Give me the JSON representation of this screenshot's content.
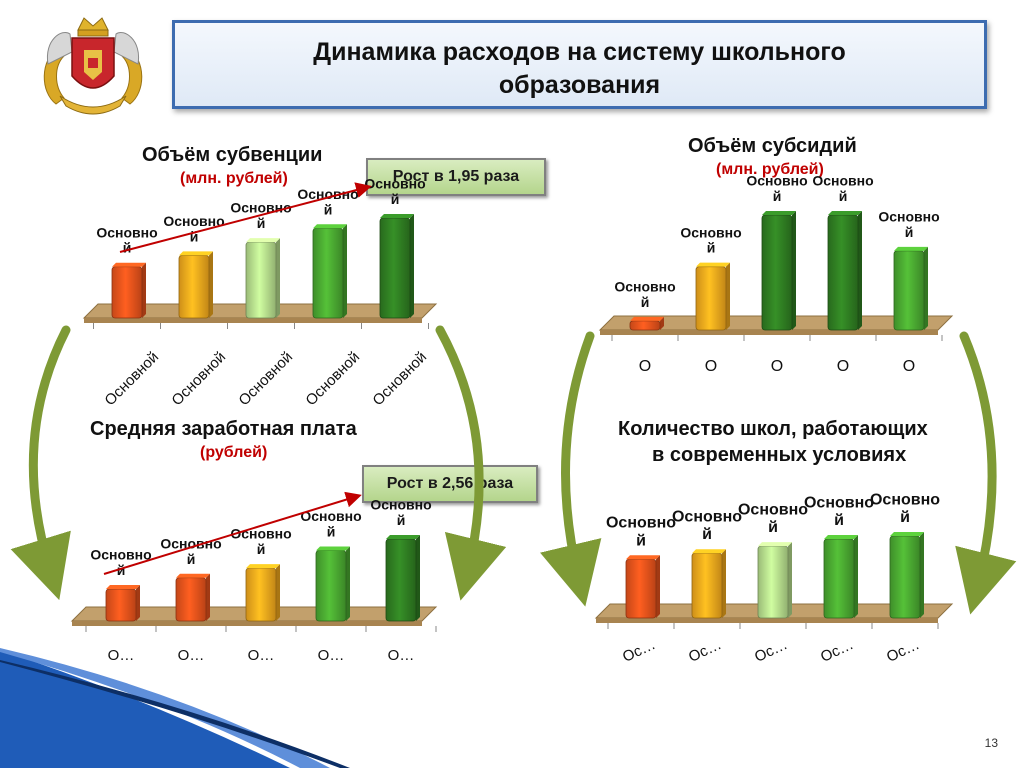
{
  "page": {
    "title_line1": "Динамика расходов на систему школьного",
    "title_line2": "образования",
    "page_number": "13"
  },
  "colors": {
    "orange": "#e8531c",
    "yellow": "#f2a81d",
    "light_green": "#b5dc8c",
    "green": "#4aa831",
    "dark_green": "#2f7d22",
    "arrow_red": "#c00000",
    "curve_green": "#7e9a35",
    "floor": "#c2a06c"
  },
  "emblem": {
    "icon": "coat-of-arms-icon"
  },
  "chart_data": [
    {
      "type": "bar",
      "title": "Объём субвенции",
      "subtitle": "(млн. рублей)",
      "growth_label": "Рост в 1,95 раза",
      "categories": [
        "Основной",
        "Основной",
        "Основной",
        "Основной",
        "Основной"
      ],
      "values": [
        1.0,
        1.22,
        1.48,
        1.75,
        1.95
      ],
      "data_labels": [
        "Основной",
        "Основной",
        "Основной",
        "Основной",
        "Основной"
      ],
      "bar_colors": [
        "#e8531c",
        "#f2a81d",
        "#b5dc8c",
        "#4aa831",
        "#2f7d22"
      ],
      "ylim": [
        0,
        2.0
      ]
    },
    {
      "type": "bar",
      "title": "Объём субсидий",
      "subtitle": "(млн. рублей)",
      "categories": [
        "О",
        "О",
        "О",
        "О",
        "О"
      ],
      "values": [
        0.11,
        0.76,
        1.38,
        1.38,
        0.95
      ],
      "data_labels": [
        "Основной",
        "Основной",
        "Основной",
        "Основной",
        "Основной"
      ],
      "bar_colors": [
        "#e8531c",
        "#f2a81d",
        "#2f7d22",
        "#2f7d22",
        "#4aa831"
      ],
      "ylim": [
        0,
        1.6
      ]
    },
    {
      "type": "bar",
      "title": "Средняя заработная плата",
      "subtitle": "(рублей)",
      "growth_label": "Рост в 2,56 раза",
      "categories": [
        "О…",
        "О…",
        "О…",
        "О…",
        "О…"
      ],
      "values": [
        1.0,
        1.35,
        1.65,
        2.2,
        2.56
      ],
      "data_labels": [
        "Основной",
        "Основной",
        "Основной",
        "Основной",
        "Основной"
      ],
      "bar_colors": [
        "#e8531c",
        "#e8531c",
        "#f2a81d",
        "#4aa831",
        "#2f7d22"
      ],
      "ylim": [
        0,
        2.6
      ]
    },
    {
      "type": "bar",
      "title": "Количество школ, работающих",
      "title_line2": "в современных условиях",
      "categories": [
        "Ос…",
        "Ос…",
        "Ос…",
        "Ос…",
        "Ос…"
      ],
      "values": [
        58,
        64,
        71,
        78,
        81
      ],
      "data_labels": [
        "Основной",
        "Основной",
        "Основной",
        "Основной",
        "Основной"
      ],
      "bar_colors": [
        "#e8531c",
        "#f2a81d",
        "#b5dc8c",
        "#4aa831",
        "#4aa831"
      ],
      "ylim": [
        0,
        85
      ]
    }
  ]
}
